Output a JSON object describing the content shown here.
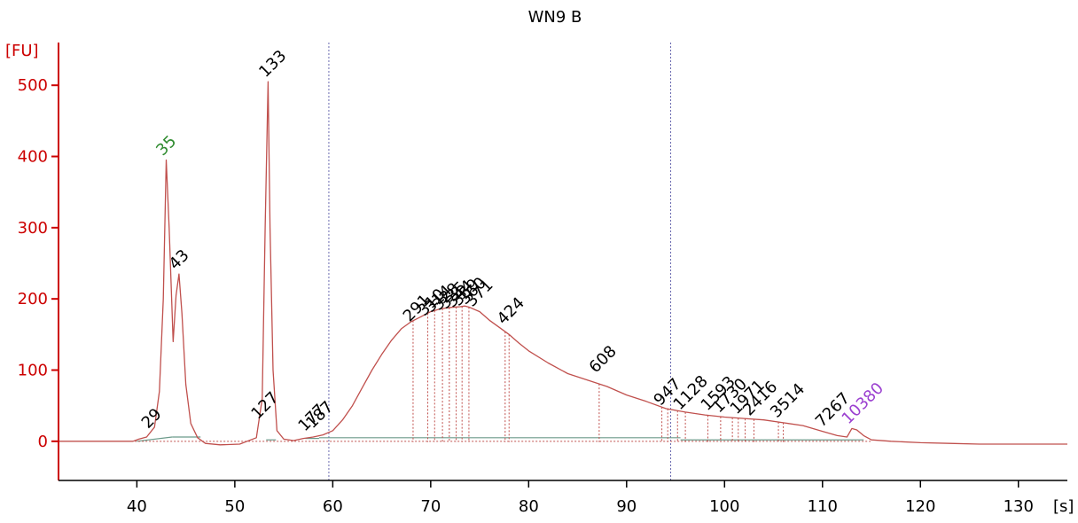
{
  "chart_data": {
    "type": "line",
    "title": "WN9 B",
    "ylabel": "[FU]",
    "xlabel": "[s]",
    "xlim": [
      32,
      135
    ],
    "ylim": [
      -55,
      560
    ],
    "xticks": [
      40,
      50,
      60,
      70,
      80,
      90,
      100,
      110,
      120,
      130
    ],
    "yticks": [
      0,
      100,
      200,
      300,
      400,
      500
    ],
    "colors": {
      "trace": "#c0504d",
      "axis": "#cc0000",
      "baseline": "#6b9a8a",
      "region": "#6a6ab0",
      "lower_marker": "#2e8b2e",
      "upper_marker": "#9b40d0",
      "text": "#000000"
    },
    "region_bounds": [
      59.6,
      94.5
    ],
    "series": [
      {
        "x": [
          32,
          39.6,
          40.2,
          41.0,
          41.8,
          42.3,
          42.7,
          43.0,
          43.3,
          43.7,
          44.0,
          44.3,
          44.6,
          45.0,
          45.5,
          46.2,
          47.0,
          48.5,
          50.5,
          52.2,
          52.8,
          53.1,
          53.4,
          53.6,
          53.9,
          54.3,
          55.0,
          56.0,
          57.0,
          58.0,
          59.0,
          60.0,
          61.0,
          62.0,
          63.0,
          64.0,
          65.0,
          66.0,
          67.0,
          68.0,
          69.0,
          70.0,
          71.0,
          72.0,
          73.0,
          73.5,
          74.0,
          75.0,
          76.0,
          77.0,
          78.0,
          79.0,
          80.0,
          82.0,
          84.0,
          86.0,
          88.0,
          90.0,
          92.0,
          94.0,
          96.0,
          98.0,
          100.0,
          102.0,
          104.0,
          106.0,
          108.0,
          110.0,
          111.5,
          112.5,
          113.0,
          113.5,
          114.2,
          115.0,
          117.0,
          120.0,
          123.0,
          126.0,
          130.0,
          135.0
        ],
        "y": [
          0,
          0,
          3,
          6,
          20,
          70,
          200,
          395,
          300,
          140,
          205,
          235,
          180,
          80,
          25,
          5,
          -3,
          -5,
          -4,
          5,
          60,
          300,
          505,
          300,
          100,
          15,
          3,
          1,
          4,
          6,
          9,
          15,
          30,
          50,
          75,
          100,
          122,
          142,
          158,
          168,
          175,
          182,
          186,
          188,
          189,
          190,
          188,
          182,
          170,
          160,
          150,
          138,
          127,
          110,
          95,
          86,
          77,
          65,
          56,
          46,
          41,
          37,
          34,
          32,
          30,
          26,
          22,
          14,
          8,
          6,
          18,
          16,
          8,
          2,
          0,
          -2,
          -3,
          -4,
          -4,
          -4
        ]
      }
    ],
    "peaks": [
      {
        "label": "29",
        "x": 41.5,
        "y": 12,
        "color": "text"
      },
      {
        "label": "35",
        "x": 43.0,
        "y": 395,
        "color": "lower_marker"
      },
      {
        "label": "43",
        "x": 44.3,
        "y": 235,
        "color": "text"
      },
      {
        "label": "133",
        "x": 53.5,
        "y": 505,
        "color": "text"
      },
      {
        "label": "127",
        "x": 52.7,
        "y": 25,
        "color": "text"
      },
      {
        "label": "177",
        "x": 57.5,
        "y": 8,
        "color": "text"
      },
      {
        "label": "187",
        "x": 58.3,
        "y": 12,
        "color": "text"
      },
      {
        "label": "291",
        "x": 68.2,
        "y": 162,
        "color": "text"
      },
      {
        "label": "310",
        "x": 69.7,
        "y": 170,
        "color": "text"
      },
      {
        "label": "314",
        "x": 70.4,
        "y": 175,
        "color": "text"
      },
      {
        "label": "328",
        "x": 71.2,
        "y": 178,
        "color": "text"
      },
      {
        "label": "335",
        "x": 71.9,
        "y": 180,
        "color": "text"
      },
      {
        "label": "344",
        "x": 72.6,
        "y": 182,
        "color": "text"
      },
      {
        "label": "359",
        "x": 73.2,
        "y": 184,
        "color": "text"
      },
      {
        "label": "360",
        "x": 73.9,
        "y": 186,
        "color": "text"
      },
      {
        "label": "371",
        "x": 74.6,
        "y": 183,
        "color": "text"
      },
      {
        "label": "424",
        "x": 77.8,
        "y": 158,
        "color": "text"
      },
      {
        "label": "608",
        "x": 87.2,
        "y": 90,
        "color": "text"
      },
      {
        "label": "947",
        "x": 93.8,
        "y": 44,
        "color": "text"
      },
      {
        "label": "1128",
        "x": 95.8,
        "y": 38,
        "color": "text"
      },
      {
        "label": "1593",
        "x": 98.6,
        "y": 37,
        "color": "text"
      },
      {
        "label": "1730",
        "x": 99.8,
        "y": 34,
        "color": "text"
      },
      {
        "label": "1971",
        "x": 101.6,
        "y": 32,
        "color": "text"
      },
      {
        "label": "2416",
        "x": 102.9,
        "y": 30,
        "color": "text"
      },
      {
        "label": "3514",
        "x": 105.7,
        "y": 27,
        "color": "text"
      },
      {
        "label": "7267",
        "x": 110.3,
        "y": 14,
        "color": "text"
      },
      {
        "label": "10380",
        "x": 113.0,
        "y": 18,
        "color": "upper_marker"
      }
    ],
    "dropline_x": [
      68.2,
      69.7,
      70.4,
      71.2,
      71.9,
      72.6,
      73.2,
      73.9,
      77.6,
      78.0,
      87.2,
      93.6,
      94.2,
      95.2,
      96.0,
      98.3,
      99.6,
      100.8,
      101.4,
      102.1,
      103.0,
      105.5,
      106.0
    ],
    "baseline_segments": [
      [
        40.0,
        43.6,
        0,
        6
      ],
      [
        43.6,
        46.5,
        6,
        6
      ],
      [
        53.2,
        54.2,
        2,
        2
      ],
      [
        57.2,
        58.6,
        4,
        4
      ],
      [
        58.6,
        95.5,
        5,
        5
      ],
      [
        95.5,
        113.5,
        2,
        2
      ],
      [
        113.5,
        114.2,
        2,
        2
      ]
    ]
  }
}
